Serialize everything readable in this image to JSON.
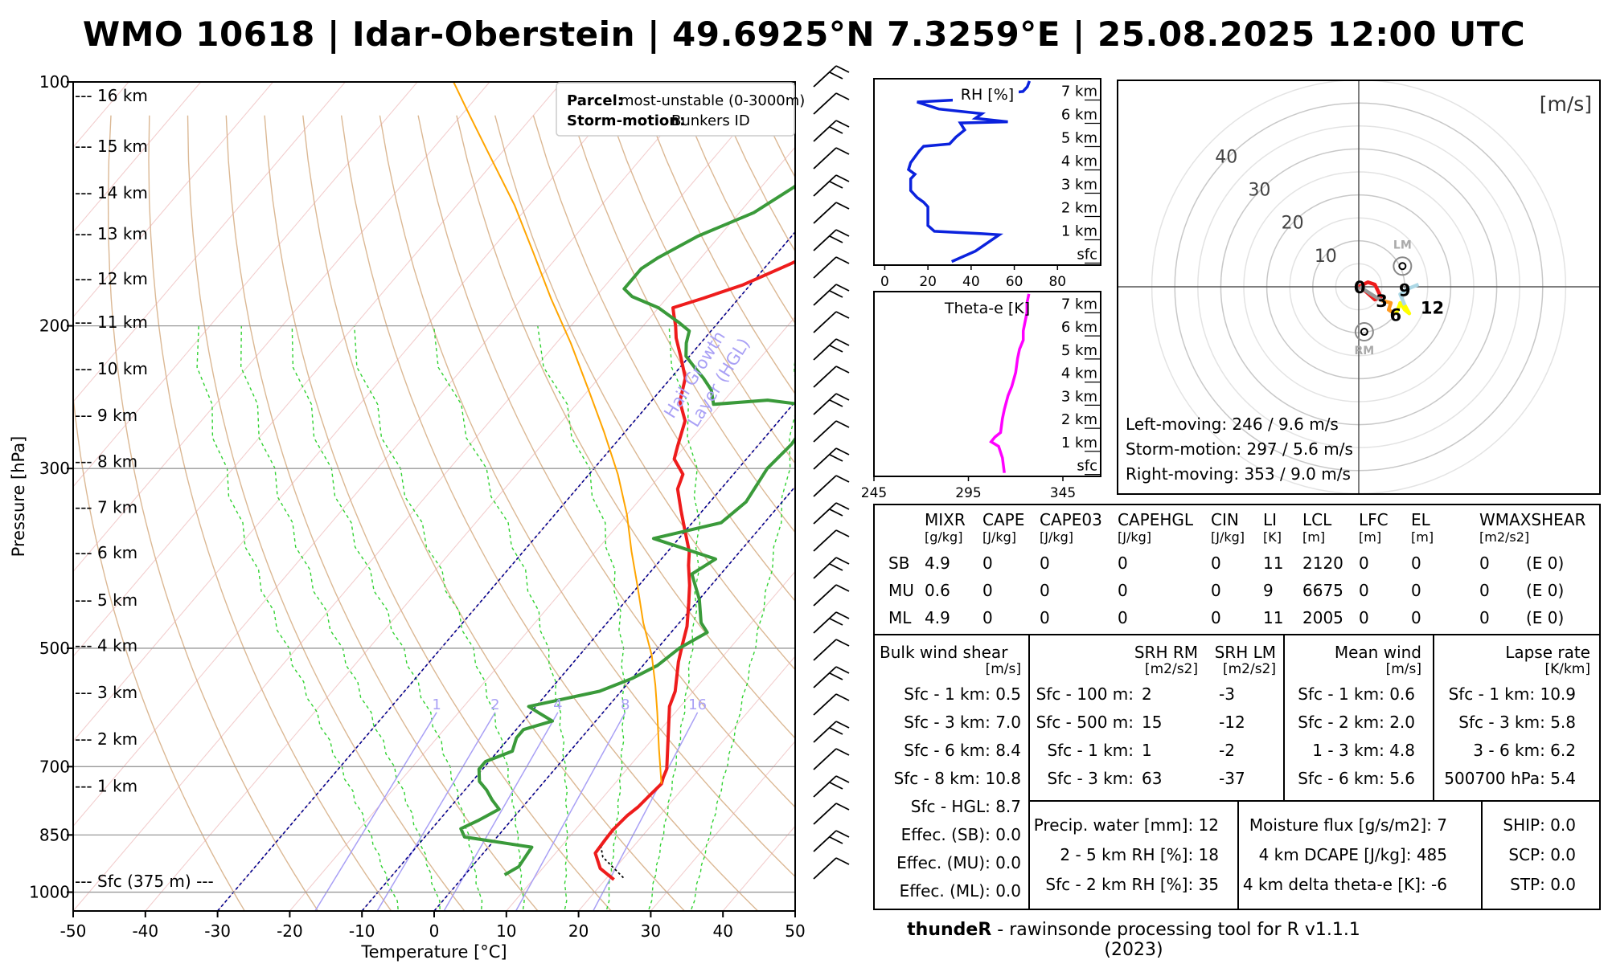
{
  "title": "WMO 10618 | Idar-Oberstein | 49.6925°N 7.3259°E | 25.08.2025 12:00 UTC",
  "footer": {
    "app": "thundeR",
    "rest": " - rawinsonde processing tool for R v1.1.1 (2023)"
  },
  "legend": {
    "parcel_key": "Parcel:",
    "parcel_val": "most-unstable (0-3000m)",
    "storm_key": "Storm-motion:",
    "storm_val": "Bunkers ID"
  },
  "skewt": {
    "xlabel": "Temperature [°C]",
    "ylabel": "Pressure [hPa]",
    "xticks": [
      "-50",
      "-40",
      "-30",
      "-20",
      "-10",
      "0",
      "10",
      "20",
      "30",
      "40",
      "50"
    ],
    "pticks": [
      "100",
      "200",
      "300",
      "500",
      "700",
      "850",
      "1000"
    ],
    "km_labels": [
      "--- 16 km",
      "--- 15 km",
      "--- 14 km",
      "--- 13 km",
      "--- 12 km",
      "--- 11 km",
      "--- 10 km",
      "--- 9 km",
      "--- 8 km",
      "--- 7 km",
      "--- 6 km",
      "--- 5 km",
      "--- 4 km",
      "--- 3 km",
      "--- 2 km",
      "--- 1 km",
      "--- Sfc (375 m) ---"
    ],
    "hgl_label": [
      "Hail Growth",
      "Layer (HGL)"
    ],
    "mixr_labels": [
      "1",
      "2",
      "4",
      "8",
      "16"
    ],
    "colors": {
      "temp": "#ee1c1c",
      "dew": "#3a9a3a",
      "parcel": "#ffa500",
      "hgl": "#00008b",
      "mixr": "#a9a0f5",
      "moist": "#32d232",
      "dry": "#d2a679",
      "grid": "#999999"
    }
  },
  "rh_panel": {
    "title": "RH [%]",
    "xticks": [
      "0",
      "20",
      "40",
      "60",
      "80"
    ],
    "km": [
      "7 km",
      "6 km",
      "5 km",
      "4 km",
      "3 km",
      "2 km",
      "1 km",
      "sfc"
    ],
    "color": "#0b22dd"
  },
  "te_panel": {
    "title": "Theta-e [K]",
    "xticks": [
      "245",
      "295",
      "345"
    ],
    "km": [
      "7 km",
      "6 km",
      "5 km",
      "4 km",
      "3 km",
      "2 km",
      "1 km",
      "sfc"
    ],
    "color": "#ff00ff"
  },
  "hodo": {
    "units": "[m/s]",
    "rings": [
      "10",
      "20",
      "30",
      "40"
    ],
    "markers": [
      "0",
      "3",
      "6",
      "9",
      "12"
    ],
    "lm": "LM",
    "rm": "RM",
    "lines": [
      "Left-moving: 246 / 9.6 m/s",
      "Storm-motion: 297 / 5.6 m/s",
      "Right-moving: 353 / 9.0 m/s"
    ]
  },
  "indices": {
    "headers": [
      "MIXR",
      "CAPE",
      "CAPE03",
      "CAPEHGL",
      "CIN",
      "LI",
      "LCL",
      "LFC",
      "EL",
      "WMAXSHEAR"
    ],
    "units": [
      "[g/kg]",
      "[J/kg]",
      "[J/kg]",
      "[J/kg]",
      "[J/kg]",
      "[K]",
      "[m]",
      "[m]",
      "[m]",
      "[m2/s2]"
    ],
    "rows": [
      {
        "label": "SB",
        "vals": [
          "4.9",
          "0",
          "0",
          "0",
          "0",
          "11",
          "2120",
          "0",
          "0",
          "0",
          "(E 0)"
        ]
      },
      {
        "label": "MU",
        "vals": [
          "0.6",
          "0",
          "0",
          "0",
          "0",
          "9",
          "6675",
          "0",
          "0",
          "0",
          "(E 0)"
        ]
      },
      {
        "label": "ML",
        "vals": [
          "4.9",
          "0",
          "0",
          "0",
          "0",
          "11",
          "2005",
          "0",
          "0",
          "0",
          "(E 0)"
        ]
      }
    ]
  },
  "shear": {
    "title": "Bulk wind shear",
    "unit": "[m/s]",
    "rows": [
      "Sfc - 1 km: 0.5",
      "Sfc - 3 km: 7.0",
      "Sfc - 6 km: 8.4",
      "Sfc - 8 km: 10.8",
      "Sfc - HGL: 8.7",
      "Effec. (SB): 0.0",
      "Effec. (MU): 0.0",
      "Effec. (ML): 0.0"
    ]
  },
  "srh": {
    "h1": "SRH RM",
    "h2": "SRH LM",
    "u1": "[m2/s2]",
    "u2": "[m2/s2]",
    "rows": [
      {
        "label": "Sfc - 100 m:",
        "rm": "2",
        "lm": "-3"
      },
      {
        "label": "Sfc - 500 m:",
        "rm": "15",
        "lm": "-12"
      },
      {
        "label": "Sfc - 1 km:",
        "rm": "1",
        "lm": "-2"
      },
      {
        "label": "Sfc - 3 km:",
        "rm": "63",
        "lm": "-37"
      }
    ]
  },
  "meanwind": {
    "title": "Mean wind",
    "unit": "[m/s]",
    "rows": [
      "Sfc - 1 km: 0.6",
      "Sfc - 2 km: 2.0",
      "1 - 3 km: 4.8",
      "Sfc - 6 km: 5.6"
    ]
  },
  "lapse": {
    "title": "Lapse rate",
    "unit": "[K/km]",
    "rows": [
      "Sfc - 1 km: 10.9",
      "Sfc - 3 km: 5.8",
      "3 - 6 km: 6.2",
      "500700 hPa: 5.4"
    ]
  },
  "moisture": {
    "rows": [
      "Precip. water [mm]: 12",
      "2 - 5 km RH [%]: 18",
      "Sfc - 2 km RH [%]: 35"
    ]
  },
  "flux": {
    "rows": [
      "Moisture flux [g/s/m2]: 7",
      "4 km DCAPE [J/kg]: 485",
      "4 km delta theta-e [K]: -6"
    ]
  },
  "composite": {
    "rows": [
      "SHIP: 0.0",
      "SCP: 0.0",
      "STP: 0.0"
    ]
  },
  "chart_data": [
    {
      "type": "line",
      "title": "",
      "xlabel": "Temperature [°C]",
      "ylabel": "Pressure [hPa]",
      "xlim": [
        -50,
        50
      ],
      "ylim": [
        1000,
        100
      ],
      "y_scale": "log",
      "series": [
        {
          "color": "#ee1c1c",
          "points": [
            [
              21.2,
              965
            ],
            [
              18,
              935
            ],
            [
              15.5,
              895
            ],
            [
              15.3,
              862
            ],
            [
              15.2,
              838
            ],
            [
              15.5,
              805
            ],
            [
              16,
              785
            ],
            [
              16.2,
              762
            ],
            [
              16.5,
              735
            ],
            [
              16,
              722
            ],
            [
              15.5,
              705
            ],
            [
              12,
              645
            ],
            [
              8.5,
              590
            ],
            [
              7.5,
              565
            ],
            [
              4.5,
              520
            ],
            [
              3,
              495
            ],
            [
              1.5,
              470
            ],
            [
              -1,
              440
            ],
            [
              -3,
              418
            ],
            [
              -5.5,
              395
            ],
            [
              -7,
              380
            ],
            [
              -10.5,
              355
            ],
            [
              -13,
              338
            ],
            [
              -16,
              318
            ],
            [
              -17,
              305
            ],
            [
              -20,
              292
            ],
            [
              -21,
              282
            ],
            [
              -23,
              262
            ],
            [
              -26,
              248
            ],
            [
              -28,
              232
            ],
            [
              -31,
              219
            ],
            [
              -34,
              207
            ],
            [
              -35.5,
              200
            ],
            [
              -37,
              194
            ],
            [
              -38,
              190
            ],
            [
              -35,
              185
            ],
            [
              -31,
              178
            ],
            [
              -27,
              168
            ],
            [
              -24,
              160
            ],
            [
              -23.5,
              156
            ],
            [
              -23.5,
              150
            ],
            [
              -23,
              143
            ],
            [
              -22,
              135
            ],
            [
              -20,
              130
            ],
            [
              -17,
              122
            ],
            [
              -15,
              115
            ],
            [
              -13,
              110
            ],
            [
              -10,
              105
            ],
            [
              -8,
              102
            ]
          ]
        },
        {
          "color": "#3a9a3a",
          "points": [
            [
              5.5,
              952
            ],
            [
              6.5,
              930
            ],
            [
              6,
              880
            ],
            [
              -4.5,
              855
            ],
            [
              -6,
              835
            ],
            [
              -4.5,
              815
            ],
            [
              -3,
              790
            ],
            [
              -5,
              770
            ],
            [
              -7,
              748
            ],
            [
              -9,
              730
            ],
            [
              -10.5,
              705
            ],
            [
              -10.5,
              690
            ],
            [
              -8,
              670
            ],
            [
              -9,
              645
            ],
            [
              -9,
              630
            ],
            [
              -6,
              615
            ],
            [
              -9,
              600
            ],
            [
              -11,
              590
            ],
            [
              -3,
              565
            ],
            [
              0,
              545
            ],
            [
              2,
              525
            ],
            [
              3,
              500
            ],
            [
              5,
              478
            ],
            [
              3,
              465
            ],
            [
              0,
              435
            ],
            [
              -4,
              405
            ],
            [
              -2.5,
              388
            ],
            [
              -13.5,
              366
            ],
            [
              -6,
              350
            ],
            [
              -5,
              330
            ],
            [
              -6,
              300
            ],
            [
              -5.5,
              280
            ],
            [
              -6,
              262
            ],
            [
              -9,
              250
            ],
            [
              -14,
              247
            ],
            [
              -21,
              250
            ],
            [
              -23,
              240
            ],
            [
              -25.5,
              232
            ],
            [
              -28,
              225
            ],
            [
              -30.5,
              218
            ],
            [
              -32,
              210
            ],
            [
              -33,
              203
            ],
            [
              -35.5,
              198
            ],
            [
              -40,
              190
            ],
            [
              -45,
              184
            ],
            [
              -47,
              180
            ],
            [
              -47,
              170
            ],
            [
              -46,
              165
            ],
            [
              -43,
              155
            ],
            [
              -38,
              145
            ],
            [
              -35.5,
              135
            ],
            [
              -34,
              128
            ],
            [
              -32,
              120
            ],
            [
              -31,
              115
            ],
            [
              -30,
              110
            ],
            [
              -29,
              105
            ],
            [
              -27.5,
              100
            ]
          ]
        },
        {
          "color": "#ffa500",
          "points": [
            [
              16.5,
              735
            ],
            [
              12,
              665
            ],
            [
              7.5,
              600
            ],
            [
              4,
              555
            ],
            [
              0,
              510
            ],
            [
              -5,
              465
            ],
            [
              -10,
              420
            ],
            [
              -15,
              380
            ],
            [
              -20,
              342
            ],
            [
              -26,
              305
            ],
            [
              -33,
              270
            ],
            [
              -40,
              240
            ],
            [
              -48,
              210
            ],
            [
              -56,
              185
            ],
            [
              -64,
              162
            ],
            [
              -72,
              142
            ],
            [
              -82,
              122
            ],
            [
              -90,
              108
            ],
            [
              -95,
              100
            ]
          ]
        }
      ]
    },
    {
      "type": "line",
      "title": "RH [%]",
      "xlim": [
        -5,
        100
      ],
      "ylim": [
        0,
        7.5
      ],
      "series": [
        {
          "color": "#0b22dd",
          "points": [
            [
              31,
              -0.35
            ],
            [
              42,
              0.1
            ],
            [
              53,
              0.8
            ],
            [
              45,
              0.85
            ],
            [
              23,
              0.95
            ],
            [
              20,
              1.2
            ],
            [
              20,
              2.0
            ],
            [
              18,
              2.2
            ],
            [
              15,
              2.4
            ],
            [
              12,
              2.7
            ],
            [
              12,
              3.2
            ],
            [
              14,
              3.4
            ],
            [
              11,
              3.6
            ],
            [
              12,
              3.9
            ],
            [
              16,
              4.4
            ],
            [
              18,
              4.6
            ],
            [
              30,
              4.7
            ],
            [
              33,
              5.0
            ],
            [
              37,
              5.3
            ],
            [
              35,
              5.6
            ],
            [
              57,
              5.65
            ],
            [
              42,
              5.8
            ],
            [
              45,
              6.0
            ],
            [
              25,
              6.2
            ],
            [
              15,
              6.5
            ],
            [
              35,
              6.6
            ],
            [
              48,
              6.75
            ],
            [
              54,
              6.85
            ],
            [
              64,
              6.95
            ],
            [
              66,
              7.15
            ],
            [
              67,
              7.4
            ]
          ]
        }
      ]
    },
    {
      "type": "line",
      "title": "Theta-e [K]",
      "xlim": [
        245,
        365
      ],
      "ylim": [
        0,
        7.5
      ],
      "series": [
        {
          "color": "#ff00ff",
          "points": [
            [
              314,
              -0.35
            ],
            [
              313,
              0.3
            ],
            [
              311,
              0.8
            ],
            [
              307,
              1.0
            ],
            [
              309,
              1.2
            ],
            [
              312,
              1.4
            ],
            [
              313,
              2.0
            ],
            [
              314,
              2.4
            ],
            [
              316,
              3.0
            ],
            [
              318,
              3.4
            ],
            [
              320,
              4.0
            ],
            [
              321,
              4.6
            ],
            [
              322,
              5.0
            ],
            [
              324,
              5.4
            ],
            [
              324,
              5.8
            ],
            [
              325,
              6.2
            ],
            [
              326,
              6.6
            ],
            [
              326,
              7.0
            ],
            [
              327,
              7.4
            ]
          ]
        }
      ]
    },
    {
      "type": "line",
      "title": "[m/s]",
      "xlim": [
        -45,
        45
      ],
      "ylim": [
        -45,
        45
      ],
      "series": [
        {
          "name": "0-1",
          "color": "#ee1c1c",
          "points": [
            [
              0,
              0
            ],
            [
              2,
              1
            ],
            [
              3.5,
              0.5
            ],
            [
              4.8,
              -2.2
            ],
            [
              3.5,
              -2.8
            ],
            [
              1.5,
              -1.0
            ],
            [
              0.2,
              0
            ]
          ]
        },
        {
          "name": "1-3",
          "color": "#999999",
          "points": [
            [
              0.2,
              0
            ],
            [
              3,
              -1.8
            ],
            [
              5,
              -3
            ]
          ]
        },
        {
          "name": "3-6",
          "color": "#ff9a1f",
          "points": [
            [
              5,
              -3
            ],
            [
              7,
              -3.5
            ],
            [
              6.5,
              -5
            ],
            [
              8,
              -6
            ]
          ]
        },
        {
          "name": "6-9",
          "color": "#ffff00",
          "points": [
            [
              8,
              -6
            ],
            [
              8.5,
              -5
            ],
            [
              9,
              -3.5
            ],
            [
              10,
              -5
            ],
            [
              11,
              -5.8
            ],
            [
              10,
              -4
            ]
          ]
        },
        {
          "name": "9-12",
          "color": "#add8e6",
          "points": [
            [
              10,
              -4
            ],
            [
              9,
              -1.6
            ],
            [
              10.5,
              -0.5
            ],
            [
              13,
              0.5
            ]
          ]
        }
      ]
    }
  ]
}
